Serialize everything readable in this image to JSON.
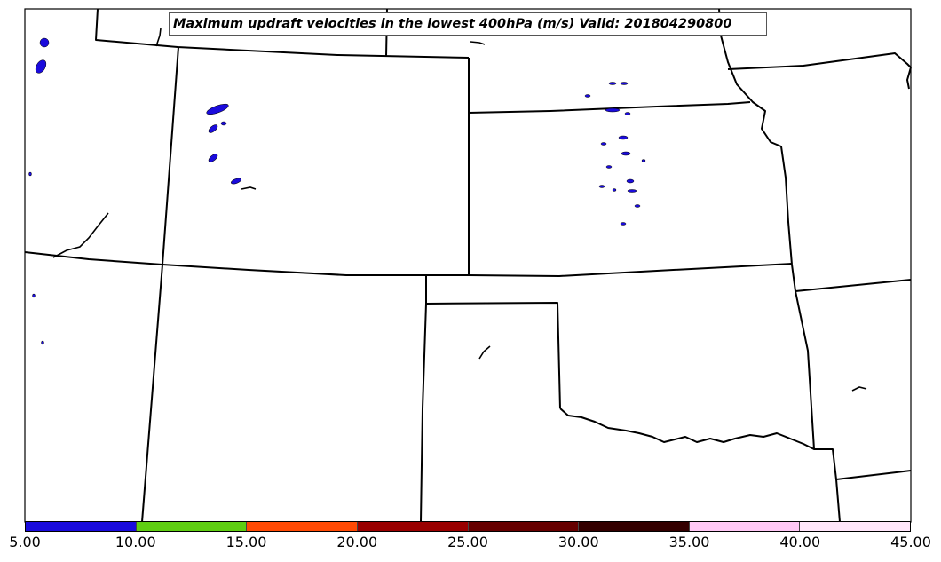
{
  "title": "Maximum updraft velocities in the lowest 400hPa (m/s) Valid: 201804290800",
  "colorbar": {
    "colors": [
      "#1a0bdc",
      "#5fce12",
      "#ff4a04",
      "#990000",
      "#660000",
      "#330000",
      "#ffc8f5",
      "#ffe6fa"
    ],
    "ticks": [
      "5.00",
      "10.00",
      "15.00",
      "20.00",
      "25.00",
      "30.00",
      "35.00",
      "40.00",
      "45.00"
    ]
  },
  "map": {
    "boundary_color": "#000000",
    "updraft_color": "#1a0bdc"
  }
}
